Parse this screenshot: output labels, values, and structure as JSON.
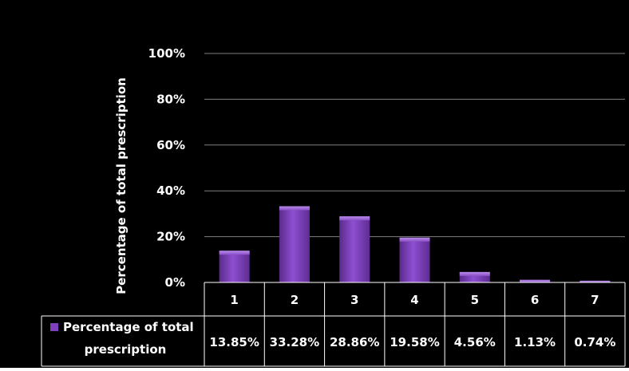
{
  "chart_data": {
    "type": "bar",
    "categories": [
      "1",
      "2",
      "3",
      "4",
      "5",
      "6",
      "7"
    ],
    "series": [
      {
        "name": "Percentage of total prescription",
        "values": [
          13.85,
          33.28,
          28.86,
          19.58,
          4.56,
          1.13,
          0.74
        ],
        "value_labels": [
          "13.85%",
          "33.28%",
          "28.86%",
          "19.58%",
          "4.56%",
          "1.13%",
          "0.74%"
        ],
        "color": "#7f3fbf"
      }
    ],
    "ylabel": "Percentage of total prescription",
    "ylim": [
      0,
      100
    ],
    "yticks": [
      0,
      20,
      40,
      60,
      80,
      100
    ],
    "ytick_labels": [
      "0%",
      "20%",
      "40%",
      "60%",
      "80%",
      "100%"
    ],
    "grid": true,
    "data_table": true,
    "legend_line1": "Percentage of total",
    "legend_line2": "prescription",
    "background": "#000000",
    "grid_color": "#7f7f7f"
  }
}
